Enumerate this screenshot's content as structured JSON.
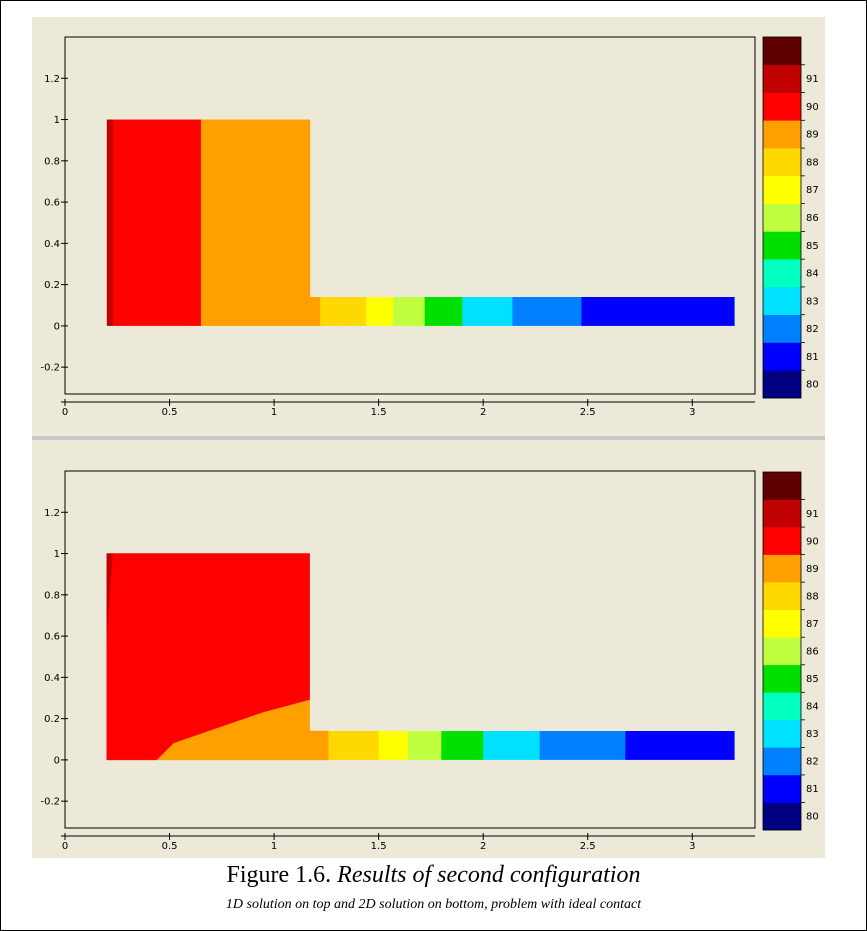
{
  "caption": {
    "figure_label": "Figure 1.6.",
    "title": "Results of second configuration",
    "subtitle": "1D solution on top and 2D solution on bottom, problem with ideal contact"
  },
  "chart_data": [
    {
      "type": "heatmap",
      "title": "",
      "xlabel": "",
      "ylabel": "",
      "xlim": [
        0,
        3.3
      ],
      "ylim": [
        -0.33,
        1.4
      ],
      "x_ticks": [
        "0",
        "0.5",
        "1",
        "1.5",
        "2",
        "2.5",
        "3"
      ],
      "y_ticks": [
        "-0.2",
        "0",
        "0.2",
        "0.4",
        "0.6",
        "0.8",
        "1",
        "1.2"
      ],
      "grid": false,
      "legend": {
        "position": "right",
        "levels": [
          "80",
          "81",
          "82",
          "83",
          "84",
          "85",
          "86",
          "87",
          "88",
          "89",
          "90",
          "91"
        ],
        "colors": [
          "#000080",
          "#0000ff",
          "#0080ff",
          "#00e0ff",
          "#00ffc0",
          "#00e000",
          "#c0ff40",
          "#ffff00",
          "#ffd800",
          "#ffa000",
          "#ff0000",
          "#c00000",
          "#600000"
        ]
      },
      "regions": [
        {
          "level": 90,
          "x": [
            0.2,
            0.23
          ],
          "y": [
            0,
            1
          ]
        },
        {
          "level": 89,
          "x": [
            0.23,
            0.65
          ],
          "y": [
            0,
            1
          ]
        },
        {
          "level": 88,
          "x": [
            0.65,
            1.17
          ],
          "y": [
            0,
            1
          ]
        },
        {
          "level": 88,
          "x": [
            1.17,
            1.22
          ],
          "y": [
            0,
            0.14
          ]
        },
        {
          "level": 87.5,
          "x": [
            1.22,
            1.32
          ],
          "y": [
            0,
            0.14
          ]
        },
        {
          "level": 87,
          "x": [
            1.32,
            1.44
          ],
          "y": [
            0,
            0.14
          ]
        },
        {
          "level": 86,
          "x": [
            1.44,
            1.57
          ],
          "y": [
            0,
            0.14
          ]
        },
        {
          "level": 85,
          "x": [
            1.57,
            1.72
          ],
          "y": [
            0,
            0.14
          ]
        },
        {
          "level": 84,
          "x": [
            1.72,
            1.9
          ],
          "y": [
            0,
            0.14
          ]
        },
        {
          "level": 82,
          "x": [
            1.9,
            2.14
          ],
          "y": [
            0,
            0.14
          ]
        },
        {
          "level": 81,
          "x": [
            2.14,
            2.47
          ],
          "y": [
            0,
            0.14
          ]
        },
        {
          "level": 80.5,
          "x": [
            2.47,
            3.2
          ],
          "y": [
            0,
            0.14
          ]
        }
      ]
    },
    {
      "type": "heatmap",
      "title": "",
      "xlabel": "",
      "ylabel": "",
      "xlim": [
        0,
        3.3
      ],
      "ylim": [
        -0.33,
        1.4
      ],
      "x_ticks": [
        "0",
        "0.5",
        "1",
        "1.5",
        "2",
        "2.5",
        "3"
      ],
      "y_ticks": [
        "-0.2",
        "0",
        "0.2",
        "0.4",
        "0.6",
        "0.8",
        "1",
        "1.2"
      ],
      "grid": false,
      "legend": {
        "position": "right",
        "levels": [
          "80",
          "81",
          "82",
          "83",
          "84",
          "85",
          "86",
          "87",
          "88",
          "89",
          "90",
          "91"
        ],
        "colors": [
          "#000080",
          "#0000ff",
          "#0080ff",
          "#00e0ff",
          "#00ffc0",
          "#00e000",
          "#c0ff40",
          "#ffff00",
          "#ffd800",
          "#ffa000",
          "#ff0000",
          "#c00000",
          "#600000"
        ]
      },
      "regions": [
        {
          "level": 90,
          "polygon": [
            [
              0.2,
              1
            ],
            [
              0.23,
              1
            ],
            [
              0.2,
              0.57
            ]
          ]
        },
        {
          "level": 89,
          "polygon": [
            [
              0.23,
              1
            ],
            [
              1.17,
              1
            ],
            [
              1.17,
              0.29
            ],
            [
              0.95,
              0.23
            ],
            [
              0.72,
              0.15
            ],
            [
              0.52,
              0.08
            ],
            [
              0.44,
              0
            ],
            [
              0.2,
              0
            ],
            [
              0.2,
              0.57
            ]
          ]
        },
        {
          "level": 88,
          "polygon": [
            [
              0.44,
              0
            ],
            [
              1.26,
              0
            ],
            [
              1.26,
              0.14
            ],
            [
              1.17,
              0.14
            ],
            [
              1.17,
              0.29
            ],
            [
              0.95,
              0.23
            ],
            [
              0.72,
              0.15
            ],
            [
              0.52,
              0.08
            ]
          ]
        },
        {
          "level": 87.5,
          "x": [
            1.26,
            1.37
          ],
          "y": [
            0,
            0.14
          ]
        },
        {
          "level": 87,
          "x": [
            1.37,
            1.5
          ],
          "y": [
            0,
            0.14
          ]
        },
        {
          "level": 86,
          "x": [
            1.5,
            1.64
          ],
          "y": [
            0,
            0.14
          ]
        },
        {
          "level": 85,
          "x": [
            1.64,
            1.8
          ],
          "y": [
            0,
            0.14
          ]
        },
        {
          "level": 84,
          "x": [
            1.8,
            2.0
          ],
          "y": [
            0,
            0.14
          ]
        },
        {
          "level": 82,
          "x": [
            2.0,
            2.27
          ],
          "y": [
            0,
            0.14
          ]
        },
        {
          "level": 81,
          "x": [
            2.27,
            2.68
          ],
          "y": [
            0,
            0.14
          ]
        },
        {
          "level": 80.5,
          "x": [
            2.68,
            3.2
          ],
          "y": [
            0,
            0.14
          ]
        }
      ]
    }
  ]
}
